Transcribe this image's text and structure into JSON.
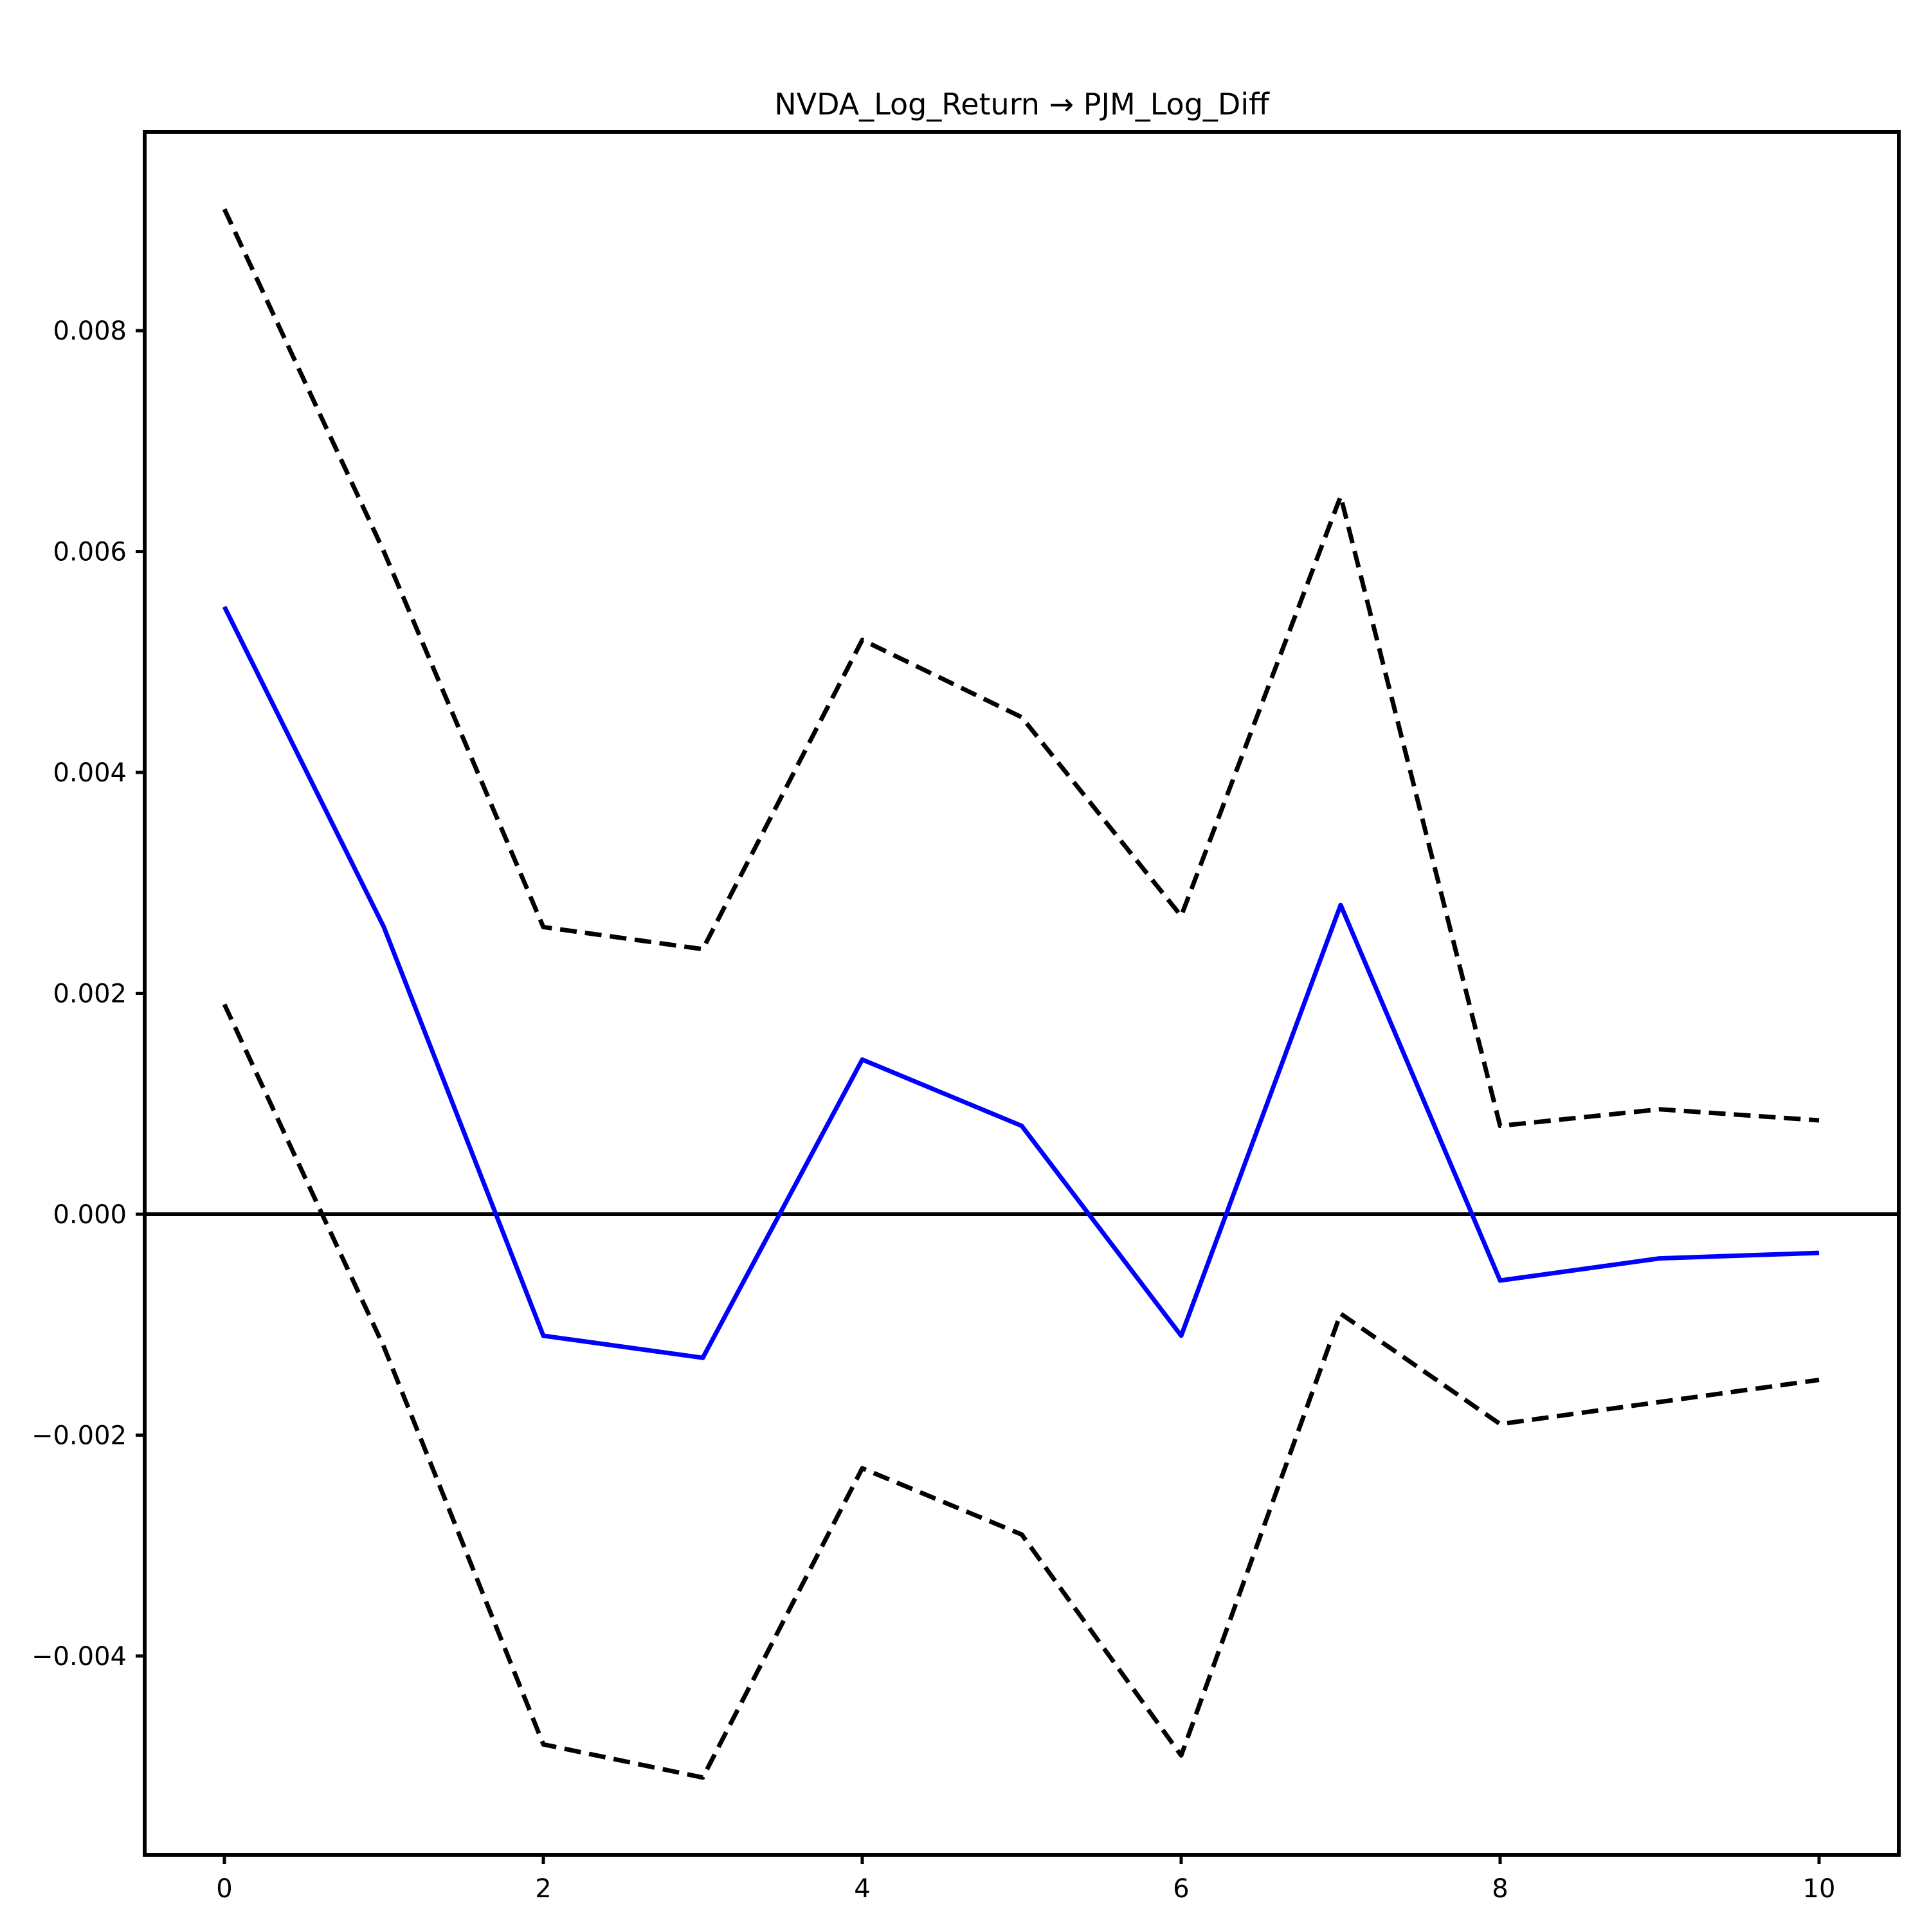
{
  "figure": {
    "title": "NVDA_Log_Return → PJM_Log_Diff",
    "background_color": "#ffffff",
    "axes_color": "#000000"
  },
  "chart_data": {
    "type": "line",
    "title": "NVDA_Log_Return → PJM_Log_Diff",
    "xlabel": "",
    "ylabel": "",
    "x": [
      0,
      1,
      2,
      3,
      4,
      5,
      6,
      7,
      8,
      9,
      10
    ],
    "series": [
      {
        "name": "irf-point-estimate",
        "color": "#0000ff",
        "dash": "solid",
        "line_width": 7,
        "values": [
          0.0055,
          0.0026,
          -0.0011,
          -0.0013,
          0.0014,
          0.0008,
          -0.0011,
          0.0028,
          -0.0006,
          -0.0004,
          -0.00035
        ]
      },
      {
        "name": "upper-confidence-band",
        "color": "#000000",
        "dash": "dashed",
        "line_width": 7,
        "values": [
          0.0091,
          0.006,
          0.0026,
          0.0024,
          0.0052,
          0.0045,
          0.0027,
          0.0065,
          0.0008,
          0.00095,
          0.00085
        ]
      },
      {
        "name": "lower-confidence-band",
        "color": "#000000",
        "dash": "dashed",
        "line_width": 7,
        "values": [
          0.0019,
          -0.0012,
          -0.0048,
          -0.0051,
          -0.0023,
          -0.0029,
          -0.0049,
          -0.0009,
          -0.0019,
          -0.0017,
          -0.0015
        ]
      }
    ],
    "zero_line": 0,
    "xlim": [
      -0.5,
      10.5
    ],
    "ylim": [
      -0.0058,
      0.0098
    ],
    "xticks": {
      "values": [
        0,
        2,
        4,
        6,
        8,
        10
      ],
      "labels": [
        "0",
        "2",
        "4",
        "6",
        "8",
        "10"
      ]
    },
    "yticks": {
      "values": [
        0.008,
        0.006,
        0.004,
        0.002,
        0.0,
        -0.002,
        -0.004
      ],
      "labels": [
        "0.008",
        "0.006",
        "0.004",
        "0.002",
        "0.000",
        "−0.002",
        "−0.004"
      ]
    },
    "grid": false,
    "legend": null
  }
}
